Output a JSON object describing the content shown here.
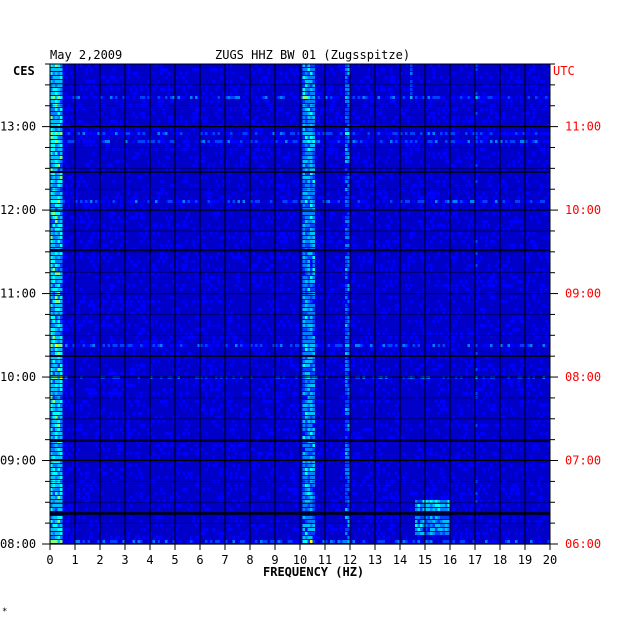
{
  "chart_data": {
    "type": "heatmap",
    "date": "May 2,2009",
    "title": "ZUGS HHZ BW 01 (Zugsspitze)",
    "left_axis_label": "CES",
    "right_axis_label": "UTC",
    "xlabel": "FREQUENCY (HZ)",
    "xlim": [
      0,
      20
    ],
    "x_ticks": [
      0,
      1,
      2,
      3,
      4,
      5,
      6,
      7,
      8,
      9,
      10,
      11,
      12,
      13,
      14,
      15,
      16,
      17,
      18,
      19,
      20
    ],
    "time_range_local": [
      "08:00",
      "13:45"
    ],
    "left_ticks": [
      "08:00",
      "09:00",
      "10:00",
      "11:00",
      "12:00",
      "13:00"
    ],
    "right_ticks": [
      "06:00",
      "07:00",
      "08:00",
      "09:00",
      "10:00",
      "11:00"
    ],
    "colors": {
      "background": "#0000c8",
      "grid": "#000000",
      "right_axis": "#ff0000",
      "left_axis": "#000000"
    },
    "notes": "Spectrogram: strong persistent energy near 10-10.5 Hz and 11.8 Hz, low-frequency energy near 0-0.5 Hz, burst near 14.5-16 Hz around 06:10-06:20 UTC."
  },
  "footer_mark": "*"
}
